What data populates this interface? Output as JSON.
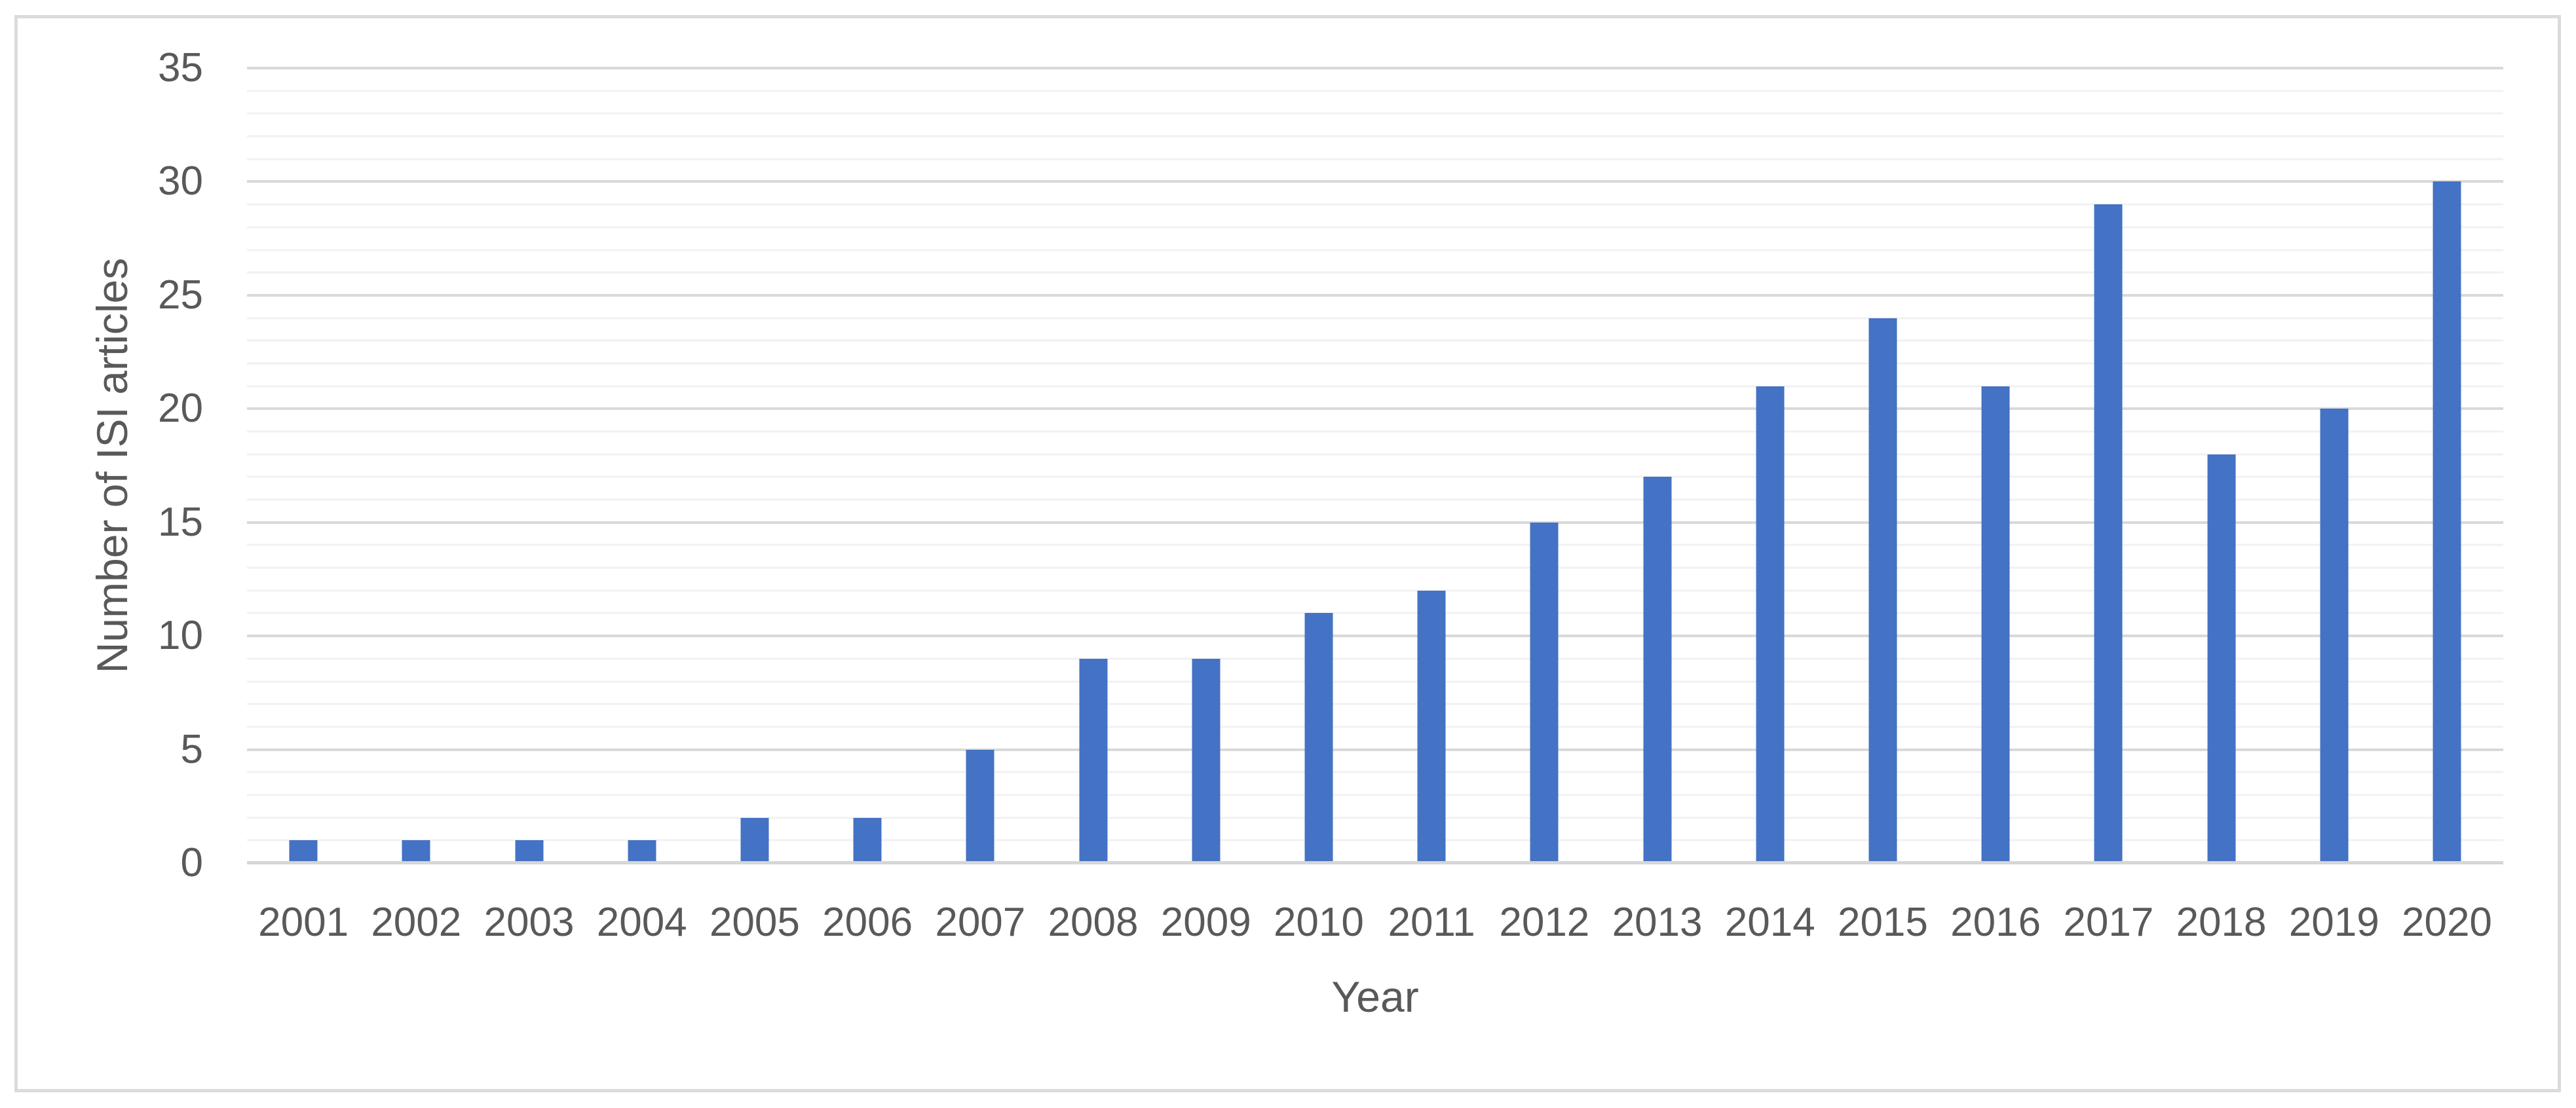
{
  "figure": {
    "background": "#ffffff",
    "border_color": "#dbdbdb"
  },
  "chart_data": {
    "type": "bar",
    "title": "",
    "xlabel": "Year",
    "ylabel": "Number of ISI articles",
    "categories": [
      "2001",
      "2002",
      "2003",
      "2004",
      "2005",
      "2006",
      "2007",
      "2008",
      "2009",
      "2010",
      "2011",
      "2012",
      "2013",
      "2014",
      "2015",
      "2016",
      "2017",
      "2018",
      "2019",
      "2020"
    ],
    "values": [
      1,
      1,
      1,
      1,
      2,
      2,
      5,
      9,
      9,
      11,
      12,
      15,
      17,
      21,
      24,
      21,
      29,
      18,
      20,
      30
    ],
    "yticks": [
      0,
      5,
      10,
      15,
      20,
      25,
      30,
      35
    ],
    "ylim": [
      0,
      35
    ],
    "ytick_step": 5,
    "minor_grid_step": 1,
    "grid": "horizontal major+minor",
    "legend": false,
    "bar_color": "#4472C4",
    "major_grid_color": "#D9D9D9",
    "minor_grid_color": "#F1F1F1",
    "axis_line_color": "#D6D6D6",
    "text_color": "#595959"
  }
}
